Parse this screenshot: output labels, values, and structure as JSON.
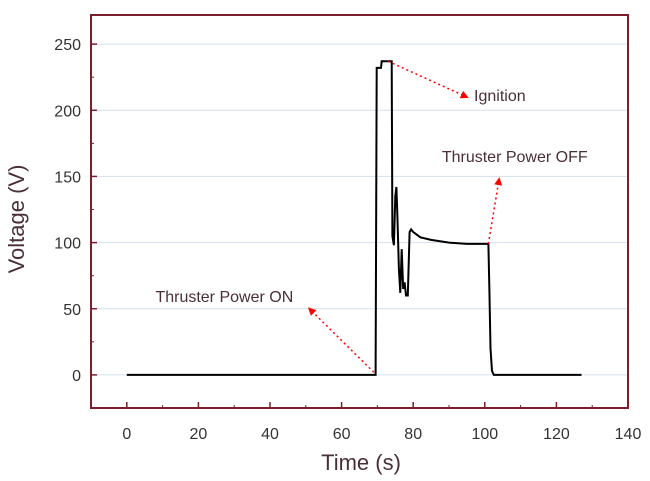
{
  "chart_data": {
    "type": "line",
    "title": "",
    "xlabel": "Time (s)",
    "ylabel": "Voltage (V)",
    "xlim": [
      -10,
      140
    ],
    "ylim": [
      -25,
      272
    ],
    "x_ticks": [
      0,
      20,
      40,
      60,
      80,
      100,
      120,
      140
    ],
    "y_ticks": [
      0,
      50,
      100,
      150,
      200,
      250
    ],
    "grid": "horizontal light blue gridlines",
    "colors": {
      "line": "#000000",
      "frame": "#7a1f2b",
      "grid": "#d3e1ee",
      "annotation_arrow": "#ff0000"
    },
    "series": [
      {
        "x": [
          0,
          69.5,
          69.8,
          70.0,
          70.2,
          71.0,
          71.2,
          74.0,
          74.2,
          74.6,
          75.0,
          75.3,
          75.6,
          76.0,
          76.4,
          76.8,
          77.2,
          77.6,
          78.0,
          78.5,
          79.0,
          79.4,
          80.0,
          80.5,
          82.0,
          85.0,
          90.0,
          95.0,
          100.0,
          101.0,
          101.3,
          101.6,
          102.0,
          102.5,
          127.0
        ],
        "y": [
          0,
          0,
          232,
          232,
          232,
          232,
          237,
          237,
          105,
          98,
          135,
          142,
          120,
          80,
          62,
          95,
          65,
          70,
          60,
          60,
          108,
          110,
          108,
          107,
          104,
          102,
          100,
          99,
          99,
          99,
          60,
          20,
          3,
          0,
          0
        ]
      }
    ],
    "annotations": [
      {
        "text": "Ignition",
        "x": 97,
        "y": 207,
        "arrow_from": [
          73,
          237
        ],
        "arrow_to": [
          95,
          210
        ]
      },
      {
        "text": "Thruster Power OFF",
        "x": 88,
        "y": 161,
        "arrow_from": [
          101,
          99
        ],
        "arrow_to": [
          104,
          148
        ]
      },
      {
        "text": "Thruster Power ON",
        "x": 8,
        "y": 55,
        "arrow_from": [
          69,
          2
        ],
        "arrow_to": [
          51,
          50
        ]
      }
    ]
  }
}
